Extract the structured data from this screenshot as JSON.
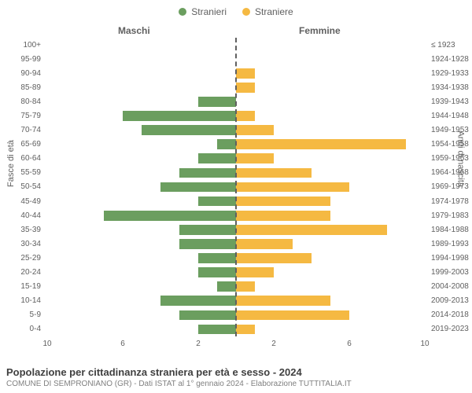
{
  "legend": {
    "male": {
      "label": "Stranieri",
      "color": "#6b9e5f"
    },
    "female": {
      "label": "Straniere",
      "color": "#f5b942"
    }
  },
  "headers": {
    "male": "Maschi",
    "female": "Femmine"
  },
  "axis_titles": {
    "left": "Fasce di età",
    "right": "Anni di nascita"
  },
  "xaxis": {
    "ticks": [
      10,
      6,
      2,
      2,
      6,
      10
    ],
    "max": 10
  },
  "chart": {
    "type": "population-pyramid",
    "bar_color_male": "#6b9e5f",
    "bar_color_female": "#f5b942",
    "background_color": "#ffffff",
    "center_line_color": "#606060",
    "rows": [
      {
        "age": "100+",
        "birth": "≤ 1923",
        "m": 0,
        "f": 0
      },
      {
        "age": "95-99",
        "birth": "1924-1928",
        "m": 0,
        "f": 0
      },
      {
        "age": "90-94",
        "birth": "1929-1933",
        "m": 0,
        "f": 1
      },
      {
        "age": "85-89",
        "birth": "1934-1938",
        "m": 0,
        "f": 1
      },
      {
        "age": "80-84",
        "birth": "1939-1943",
        "m": 2,
        "f": 0
      },
      {
        "age": "75-79",
        "birth": "1944-1948",
        "m": 6,
        "f": 1
      },
      {
        "age": "70-74",
        "birth": "1949-1953",
        "m": 5,
        "f": 2
      },
      {
        "age": "65-69",
        "birth": "1954-1958",
        "m": 1,
        "f": 9
      },
      {
        "age": "60-64",
        "birth": "1959-1963",
        "m": 2,
        "f": 2
      },
      {
        "age": "55-59",
        "birth": "1964-1968",
        "m": 3,
        "f": 4
      },
      {
        "age": "50-54",
        "birth": "1969-1973",
        "m": 4,
        "f": 6
      },
      {
        "age": "45-49",
        "birth": "1974-1978",
        "m": 2,
        "f": 5
      },
      {
        "age": "40-44",
        "birth": "1979-1983",
        "m": 7,
        "f": 5
      },
      {
        "age": "35-39",
        "birth": "1984-1988",
        "m": 3,
        "f": 8
      },
      {
        "age": "30-34",
        "birth": "1989-1993",
        "m": 3,
        "f": 3
      },
      {
        "age": "25-29",
        "birth": "1994-1998",
        "m": 2,
        "f": 4
      },
      {
        "age": "20-24",
        "birth": "1999-2003",
        "m": 2,
        "f": 2
      },
      {
        "age": "15-19",
        "birth": "2004-2008",
        "m": 1,
        "f": 1
      },
      {
        "age": "10-14",
        "birth": "2009-2013",
        "m": 4,
        "f": 5
      },
      {
        "age": "5-9",
        "birth": "2014-2018",
        "m": 3,
        "f": 6
      },
      {
        "age": "0-4",
        "birth": "2019-2023",
        "m": 2,
        "f": 1
      }
    ]
  },
  "footer": {
    "title": "Popolazione per cittadinanza straniera per età e sesso - 2024",
    "subtitle": "COMUNE DI SEMPRONIANO (GR) - Dati ISTAT al 1° gennaio 2024 - Elaborazione TUTTITALIA.IT"
  }
}
